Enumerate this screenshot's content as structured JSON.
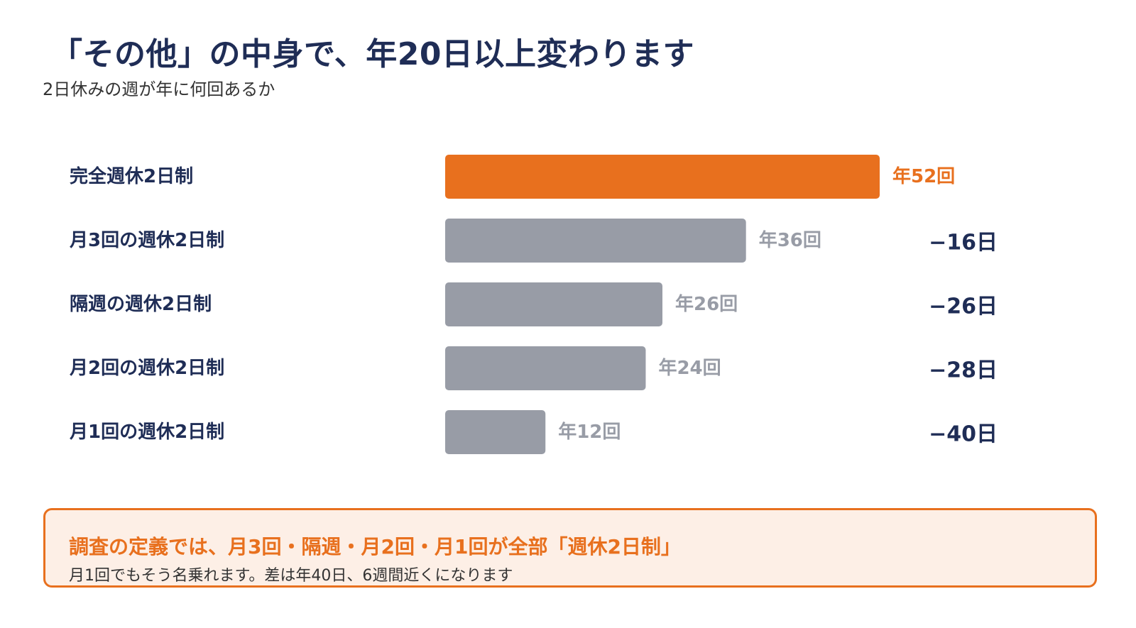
{
  "title": "「その他」の中身で、年20日以上変わります",
  "subtitle": "2日休みの週が年に何回あるか",
  "colors": {
    "highlight": "#e8701e",
    "bar": "#989ca6",
    "text_dark": "#1f2d56",
    "value_gray": "#989ca6"
  },
  "chart_data": {
    "type": "bar",
    "orientation": "horizontal",
    "categories": [
      "完全週休2日制",
      "月3回の週休2日制",
      "隔週の週休2日制",
      "月2回の週休2日制",
      "月1回の週休2日制"
    ],
    "values": [
      52,
      36,
      26,
      24,
      12
    ],
    "value_labels": [
      "年52回",
      "年36回",
      "年26回",
      "年24回",
      "年12回"
    ],
    "differences": [
      "",
      "−16日",
      "−26日",
      "−28日",
      "−40日"
    ],
    "highlight_index": 0,
    "xlim": [
      0,
      52
    ]
  },
  "callout": {
    "heading": "調査の定義では、月3回・隔週・月2回・月1回が全部「週休2日制」",
    "body": "月1回でもそう名乗れます。差は年40日、6週間近くになります"
  }
}
